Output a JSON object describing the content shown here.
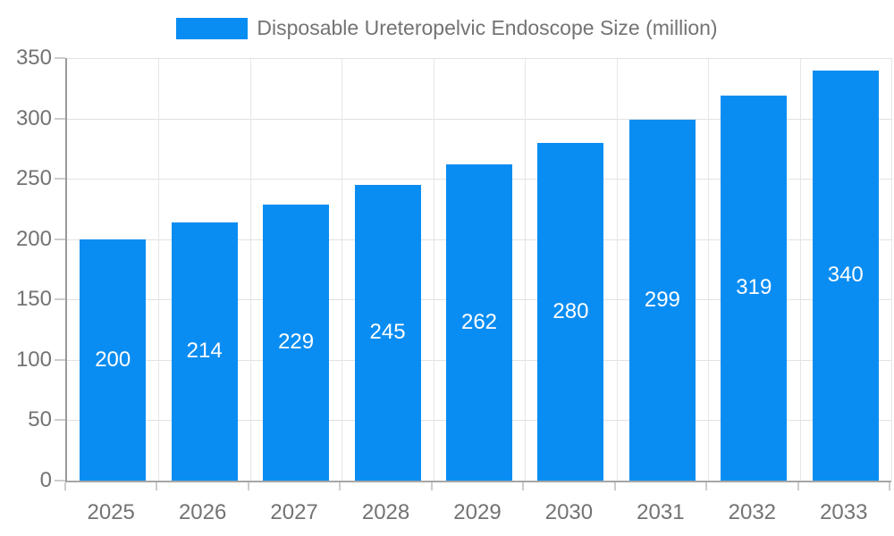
{
  "chart_data": {
    "type": "bar",
    "title": "Disposable Ureteropelvic Endoscope Size (million)",
    "categories": [
      "2025",
      "2026",
      "2027",
      "2028",
      "2029",
      "2030",
      "2031",
      "2032",
      "2033"
    ],
    "values": [
      200,
      214,
      229,
      245,
      262,
      280,
      299,
      319,
      340
    ],
    "xlabel": "",
    "ylabel": "",
    "ylim": [
      0,
      350
    ],
    "ytick_step": 50,
    "yticks": [
      0,
      50,
      100,
      150,
      200,
      250,
      300,
      350
    ],
    "grid": true,
    "legend_position": "top",
    "bar_color": "#0a8df2",
    "value_label_color": "#ffffff",
    "axis_text_color": "#737373",
    "gridline_color": "#e2e2e2",
    "axis_line_color": "#999999"
  }
}
